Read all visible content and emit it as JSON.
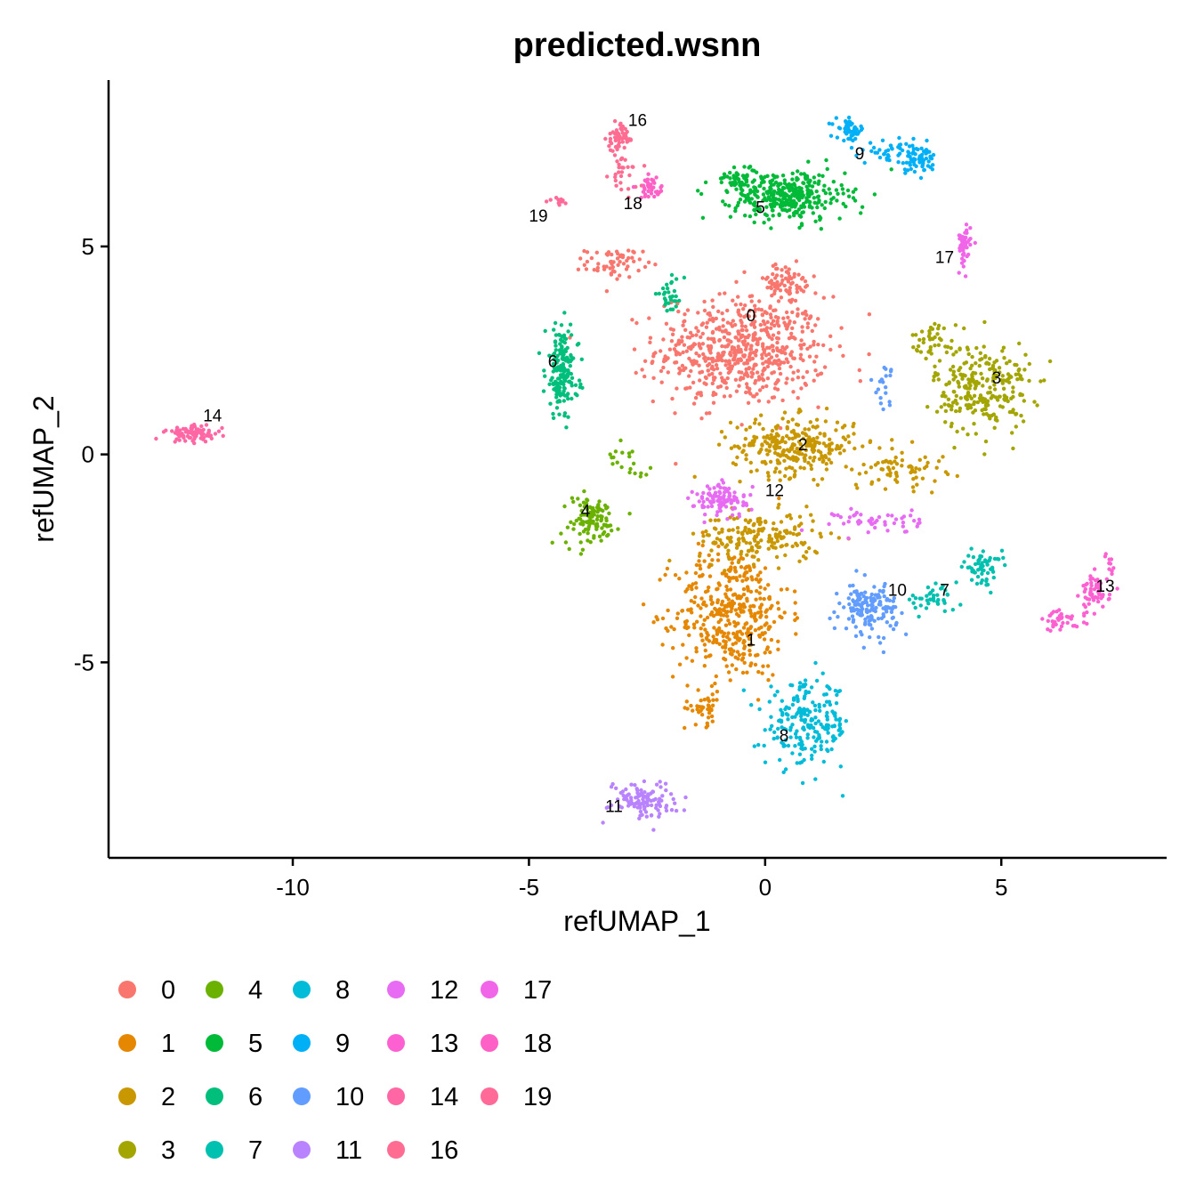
{
  "chart_data": {
    "type": "scatter",
    "title": "predicted.wsnn",
    "xlabel": "refUMAP_1",
    "ylabel": "refUMAP_2",
    "xlim": [
      -13.9,
      8.5
    ],
    "ylim": [
      -9.7,
      9.0
    ],
    "x_ticks": [
      -10,
      -5,
      0,
      5
    ],
    "x_tick_labels": [
      "-10",
      "-5",
      "0",
      "5"
    ],
    "y_ticks": [
      5,
      0,
      -5
    ],
    "y_tick_labels": [
      "5",
      "0",
      "-5"
    ],
    "grid": false,
    "legend_position": "bottom",
    "clusters": [
      {
        "name": "0",
        "color": "#F8766D",
        "label_xy": [
          -0.3,
          3.2
        ],
        "blobs": [
          [
            -0.5,
            2.5,
            1.8,
            1.3,
            620
          ],
          [
            -3.2,
            4.6,
            0.6,
            0.35,
            60
          ],
          [
            0.4,
            4.1,
            0.7,
            0.5,
            70
          ]
        ]
      },
      {
        "name": "1",
        "color": "#E58700",
        "label_xy": [
          -0.3,
          -4.6
        ],
        "blobs": [
          [
            -0.7,
            -3.8,
            1.2,
            1.6,
            420
          ],
          [
            -1.3,
            -6.1,
            0.4,
            0.4,
            40
          ]
        ]
      },
      {
        "name": "2",
        "color": "#C99800",
        "label_xy": [
          0.8,
          0.1
        ],
        "blobs": [
          [
            0.6,
            0.2,
            1.3,
            0.7,
            280
          ],
          [
            -0.1,
            -2.0,
            1.3,
            0.6,
            180
          ],
          [
            2.8,
            -0.3,
            1.0,
            0.5,
            70
          ]
        ]
      },
      {
        "name": "3",
        "color": "#A3A500",
        "label_xy": [
          4.9,
          1.7
        ],
        "blobs": [
          [
            4.6,
            1.6,
            1.0,
            1.1,
            260
          ],
          [
            3.6,
            2.8,
            0.5,
            0.4,
            40
          ]
        ]
      },
      {
        "name": "4",
        "color": "#6BB100",
        "label_xy": [
          -3.8,
          -1.5
        ],
        "blobs": [
          [
            -3.7,
            -1.6,
            0.6,
            0.6,
            110
          ],
          [
            -2.9,
            -0.1,
            0.5,
            0.4,
            20
          ]
        ]
      },
      {
        "name": "5",
        "color": "#00BA38",
        "label_xy": [
          -0.1,
          5.8
        ],
        "blobs": [
          [
            0.5,
            6.2,
            1.2,
            0.6,
            330
          ],
          [
            -0.5,
            6.6,
            0.6,
            0.3,
            60
          ]
        ]
      },
      {
        "name": "6",
        "color": "#00BF7D",
        "label_xy": [
          -4.5,
          2.1
        ],
        "blobs": [
          [
            -4.3,
            2.0,
            0.35,
            1.1,
            170
          ],
          [
            -2.0,
            3.8,
            0.3,
            0.4,
            30
          ]
        ]
      },
      {
        "name": "7",
        "color": "#00C0AF",
        "label_xy": [
          3.8,
          -3.4
        ],
        "blobs": [
          [
            4.6,
            -2.7,
            0.4,
            0.4,
            60
          ],
          [
            3.5,
            -3.5,
            0.6,
            0.3,
            40
          ]
        ]
      },
      {
        "name": "8",
        "color": "#00BCD8",
        "label_xy": [
          0.4,
          -6.9
        ],
        "blobs": [
          [
            0.9,
            -6.5,
            0.9,
            1.0,
            220
          ]
        ]
      },
      {
        "name": "9",
        "color": "#00B0F6",
        "label_xy": [
          2.0,
          7.1
        ],
        "blobs": [
          [
            1.8,
            7.8,
            0.3,
            0.25,
            50
          ],
          [
            3.2,
            7.1,
            0.5,
            0.35,
            70
          ],
          [
            2.6,
            7.3,
            0.4,
            0.25,
            30
          ]
        ]
      },
      {
        "name": "10",
        "color": "#619CFF",
        "label_xy": [
          2.8,
          -3.4
        ],
        "blobs": [
          [
            2.2,
            -3.7,
            0.6,
            0.6,
            150
          ],
          [
            2.5,
            1.7,
            0.2,
            0.5,
            20
          ]
        ]
      },
      {
        "name": "11",
        "color": "#B983FF",
        "label_xy": [
          -3.2,
          -8.6
        ],
        "blobs": [
          [
            -2.6,
            -8.3,
            0.7,
            0.45,
            110
          ]
        ]
      },
      {
        "name": "12",
        "color": "#E76BF3",
        "label_xy": [
          0.2,
          -1.0
        ],
        "blobs": [
          [
            -0.9,
            -1.1,
            0.6,
            0.4,
            100
          ],
          [
            2.4,
            -1.6,
            0.9,
            0.3,
            50
          ]
        ]
      },
      {
        "name": "13",
        "color": "#FD61D1",
        "label_xy": [
          7.2,
          -3.3
        ],
        "blobs": [
          [
            7.0,
            -3.3,
            0.3,
            0.4,
            60
          ],
          [
            6.3,
            -4.0,
            0.5,
            0.25,
            40
          ],
          [
            7.3,
            -2.6,
            0.1,
            0.35,
            10
          ]
        ]
      },
      {
        "name": "14",
        "color": "#FF67A4",
        "label_xy": [
          -11.7,
          0.8
        ],
        "blobs": [
          [
            -12.1,
            0.5,
            0.6,
            0.2,
            80
          ]
        ]
      },
      {
        "name": "16",
        "color": "#FF6C91",
        "label_xy": [
          -2.7,
          7.9
        ],
        "blobs": [
          [
            -3.1,
            7.6,
            0.25,
            0.3,
            50
          ],
          [
            -3.0,
            6.8,
            0.3,
            0.5,
            30
          ]
        ]
      },
      {
        "name": "17",
        "color": "#F166E8",
        "label_xy": [
          3.8,
          4.6
        ],
        "blobs": [
          [
            4.2,
            5.0,
            0.15,
            0.5,
            50
          ]
        ]
      },
      {
        "name": "18",
        "color": "#FE61C6",
        "label_xy": [
          -2.8,
          5.9
        ],
        "blobs": [
          [
            -2.4,
            6.4,
            0.25,
            0.25,
            40
          ]
        ]
      },
      {
        "name": "19",
        "color": "#FF6A98",
        "label_xy": [
          -4.8,
          5.6
        ],
        "blobs": [
          [
            -4.4,
            6.1,
            0.2,
            0.1,
            12
          ]
        ]
      }
    ],
    "legend_columns": [
      [
        "0",
        "1",
        "2",
        "3"
      ],
      [
        "4",
        "5",
        "6",
        "7"
      ],
      [
        "8",
        "9",
        "10",
        "11"
      ],
      [
        "12",
        "13",
        "14",
        "16"
      ],
      [
        "17",
        "18",
        "19"
      ]
    ]
  }
}
